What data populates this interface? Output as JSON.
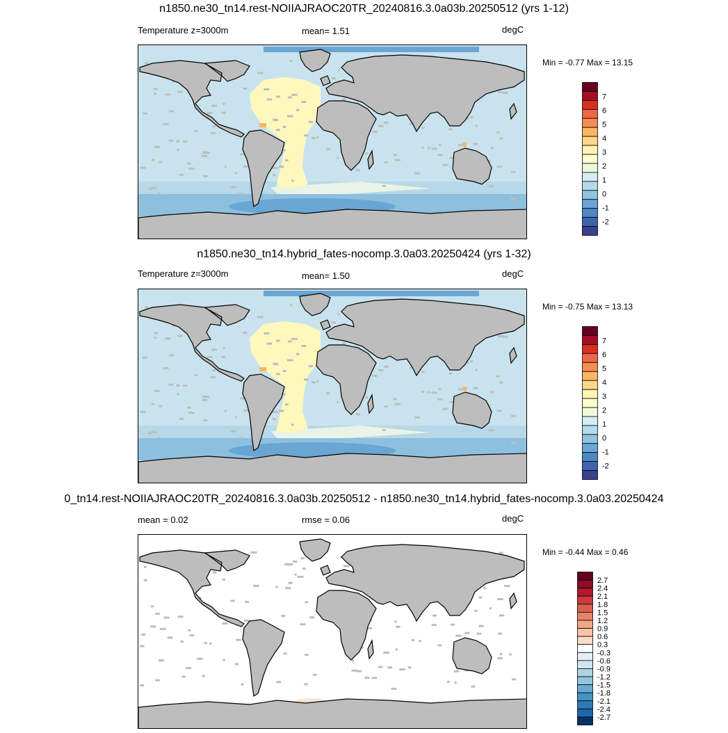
{
  "panels": [
    {
      "title": "n1850.ne30_tn14.rest-NOIIAJRAOC20TR_20240816.3.0a03b.20250512 (yrs 1-12)",
      "left_label": "Temperature z=3000m",
      "center_label": "mean=   1.51",
      "units": "degC",
      "minmax": "Min =  -0.77 Max =  13.15",
      "theme": "temp",
      "colorbar": {
        "labels": [
          "7",
          "6",
          "5",
          "4",
          "3",
          "2",
          "1",
          "0",
          "-1",
          "-2"
        ],
        "colors": [
          "#67001f",
          "#a50f26",
          "#d7301f",
          "#ef6548",
          "#f88d52",
          "#fdb663",
          "#fdd88a",
          "#fff4b0",
          "#ffffcc",
          "#eef7d8",
          "#d4ecf2",
          "#b3dbea",
          "#8fc3e0",
          "#6aa6d3",
          "#4d88c4",
          "#3f64ad",
          "#3b3f8f"
        ]
      }
    },
    {
      "title": "n1850.ne30_tn14.hybrid_fates-nocomp.3.0a03.20250424 (yrs 1-32)",
      "left_label": "Temperature z=3000m",
      "center_label": "mean=   1.50",
      "units": "degC",
      "minmax": "Min =  -0.75 Max =  13.13",
      "theme": "temp",
      "colorbar": {
        "labels": [
          "7",
          "6",
          "5",
          "4",
          "3",
          "2",
          "1",
          "0",
          "-1",
          "-2"
        ],
        "colors": [
          "#67001f",
          "#a50f26",
          "#d7301f",
          "#ef6548",
          "#f88d52",
          "#fdb663",
          "#fdd88a",
          "#fff4b0",
          "#ffffcc",
          "#eef7d8",
          "#d4ecf2",
          "#b3dbea",
          "#8fc3e0",
          "#6aa6d3",
          "#4d88c4",
          "#3f64ad",
          "#3b3f8f"
        ]
      }
    },
    {
      "title": "0_tn14.rest-NOIIAJRAOC20TR_20240816.3.0a03b.20250512 - n1850.ne30_tn14.hybrid_fates-nocomp.3.0a03.20250424",
      "left_label": "mean =   0.02",
      "center_label": "rmse =   0.06",
      "units": "degC",
      "minmax": "Min =  -0.44 Max =   0.46",
      "theme": "diff",
      "colorbar": {
        "labels": [
          "2.7",
          "2.4",
          "2.1",
          "1.8",
          "1.5",
          "1.2",
          "0.9",
          "0.6",
          "0.3",
          "-0.3",
          "-0.6",
          "-0.9",
          "-1.2",
          "-1.5",
          "-1.8",
          "-2.1",
          "-2.4",
          "-2.7"
        ],
        "colors": [
          "#67001f",
          "#8e0c25",
          "#b2182b",
          "#cb3b3c",
          "#d6604d",
          "#e58368",
          "#f4a582",
          "#f8c4a8",
          "#fddbc7",
          "#ffffff",
          "#e3eef6",
          "#d1e5f0",
          "#b0d2e7",
          "#92c5de",
          "#6aabd0",
          "#4393c3",
          "#2f79b5",
          "#2166ac",
          "#053061"
        ]
      }
    }
  ]
}
